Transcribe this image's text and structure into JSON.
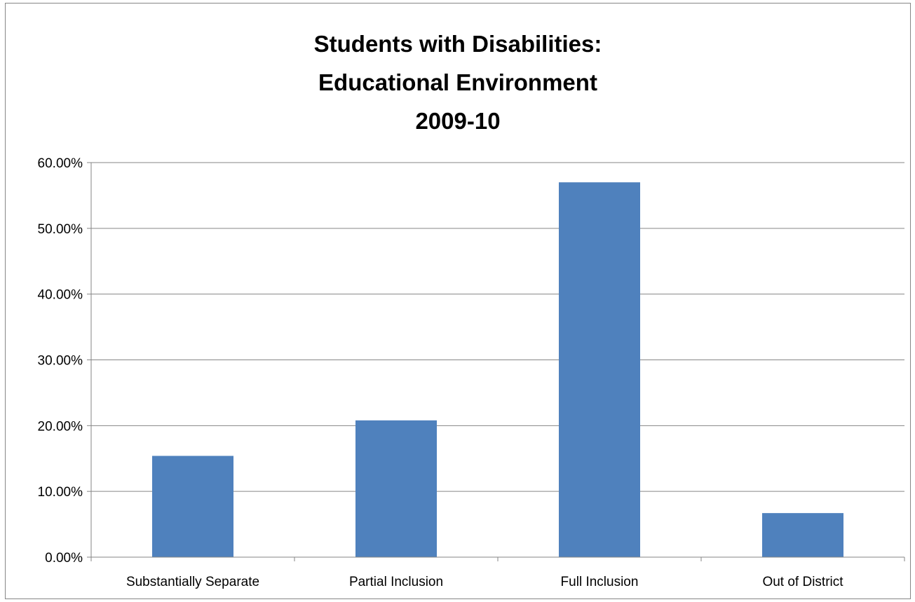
{
  "chart_data": {
    "type": "bar",
    "title_lines": [
      "Students with Disabilities:",
      "Educational Environment",
      "2009-10"
    ],
    "categories": [
      "Substantially Separate",
      "Partial Inclusion",
      "Full Inclusion",
      "Out of District"
    ],
    "values": [
      15.4,
      20.8,
      57.0,
      6.7
    ],
    "xlabel": "",
    "ylabel": "",
    "ylim": [
      0,
      60
    ],
    "y_ticks": [
      "0.00%",
      "10.00%",
      "20.00%",
      "30.00%",
      "40.00%",
      "50.00%",
      "60.00%"
    ],
    "grid": true,
    "legend": "none",
    "colors": {
      "bar": "#4F81BD",
      "grid": "#868686",
      "axis": "#868686"
    }
  }
}
